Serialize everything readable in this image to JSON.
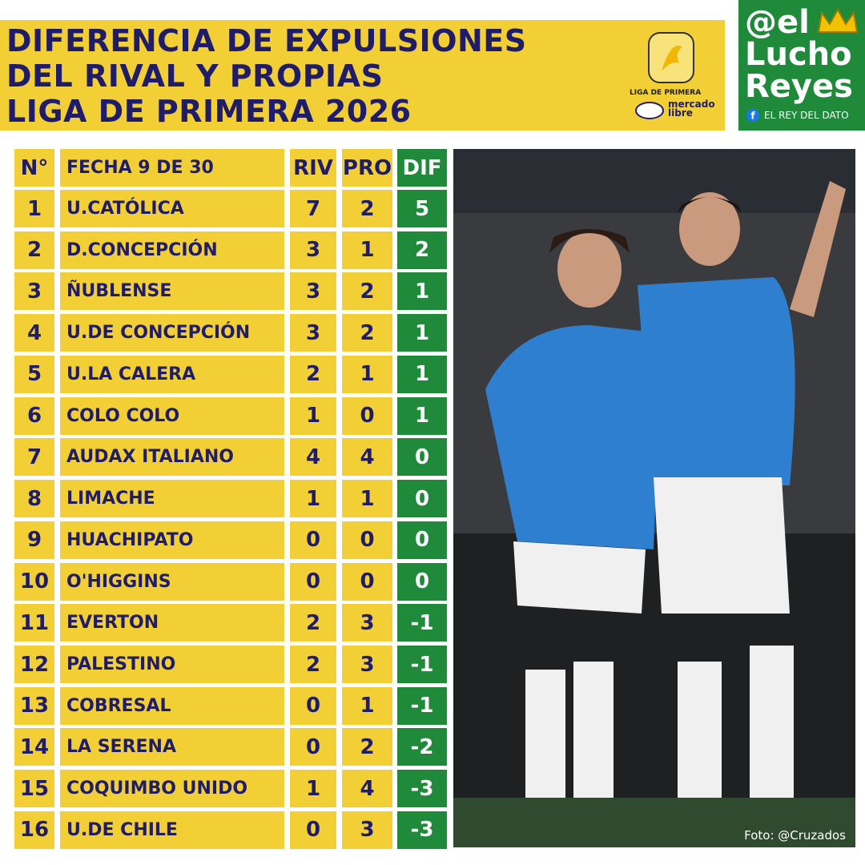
{
  "header": {
    "title": [
      "DIFERENCIA DE EXPULSIONES",
      "DEL RIVAL Y PROPIAS",
      "LIGA DE PRIMERA 2026"
    ],
    "logo": {
      "league": "LIGA DE PRIMERA",
      "sponsor": [
        "mercado",
        "libre"
      ]
    }
  },
  "brand": {
    "handle": [
      "@el",
      "Lucho",
      "Reyes"
    ],
    "tagline": "EL REY DEL DATO"
  },
  "table": {
    "columns": [
      "N°",
      "FECHA 9 DE 30",
      "RIV",
      "PRO",
      "DIF"
    ],
    "rows": [
      [
        1,
        "U.CATÓLICA",
        7,
        2,
        5
      ],
      [
        2,
        "D.CONCEPCIÓN",
        3,
        1,
        2
      ],
      [
        3,
        "ÑUBLENSE",
        3,
        2,
        1
      ],
      [
        4,
        "U.DE CONCEPCIÓN",
        3,
        2,
        1
      ],
      [
        5,
        "U.LA CALERA",
        2,
        1,
        1
      ],
      [
        6,
        "COLO COLO",
        1,
        0,
        1
      ],
      [
        7,
        "AUDAX ITALIANO",
        4,
        4,
        0
      ],
      [
        8,
        "LIMACHE",
        1,
        1,
        0
      ],
      [
        9,
        "HUACHIPATO",
        0,
        0,
        0
      ],
      [
        10,
        "O'HIGGINS",
        0,
        0,
        0
      ],
      [
        11,
        "EVERTON",
        2,
        3,
        -1
      ],
      [
        12,
        "PALESTINO",
        2,
        3,
        -1
      ],
      [
        13,
        "COBRESAL",
        0,
        1,
        -1
      ],
      [
        14,
        "LA SERENA",
        0,
        2,
        -2
      ],
      [
        15,
        "COQUIMBO UNIDO",
        1,
        4,
        -3
      ],
      [
        16,
        "U.DE CHILE",
        0,
        3,
        -3
      ]
    ]
  },
  "photo": {
    "credit": "Foto: @Cruzados"
  }
}
